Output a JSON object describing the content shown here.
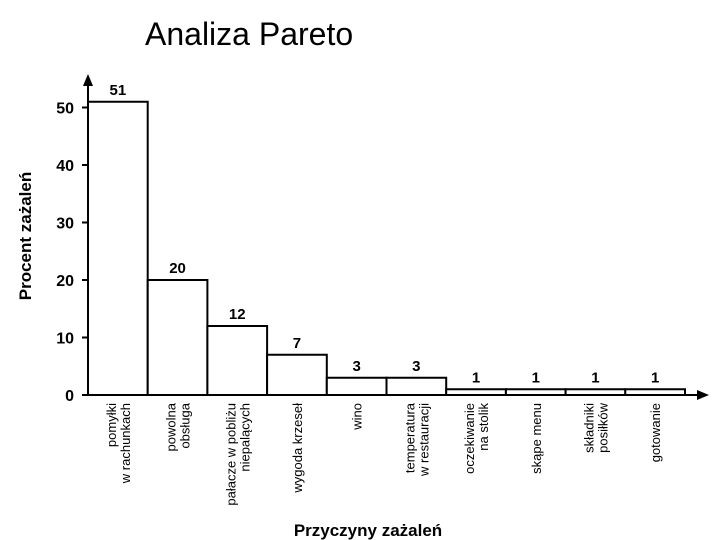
{
  "title": "Analiza Pareto",
  "chart_data": {
    "type": "bar",
    "xlabel": "Przyczyny zażaleń",
    "ylabel": "Procent zażaleń",
    "ylim": [
      0,
      55
    ],
    "yticks": [
      0,
      10,
      20,
      30,
      40,
      50
    ],
    "grid": false,
    "categories": [
      [
        "pomyłki",
        "w rachunkach"
      ],
      [
        "powolna",
        "obsługa"
      ],
      [
        "pałacze w pobliżu",
        "niepalących"
      ],
      [
        "wygoda krzeseł"
      ],
      [
        "wino"
      ],
      [
        "temperatura",
        "w restauracji"
      ],
      [
        "oczekiwanie",
        "na stolik"
      ],
      [
        "skąpe menu"
      ],
      [
        "składniki",
        "posiłków"
      ],
      [
        "gotowanie"
      ]
    ],
    "values": [
      51,
      20,
      12,
      7,
      3,
      3,
      1,
      1,
      1,
      1
    ],
    "bar_color": "#ffffff",
    "line_color": "#000000"
  }
}
